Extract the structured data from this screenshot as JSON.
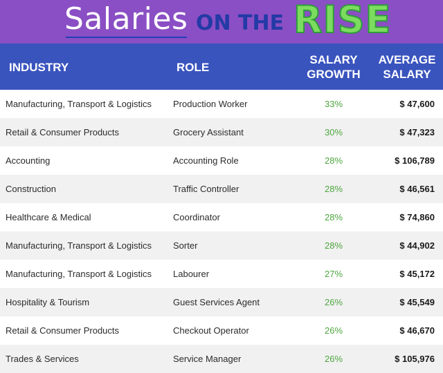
{
  "header": {
    "title_part1": "Salaries",
    "title_part2": "ON THE",
    "title_part3": "RISE"
  },
  "table": {
    "columns": {
      "industry": "INDUSTRY",
      "role": "ROLE",
      "growth_line1": "SALARY",
      "growth_line2": "GROWTH",
      "salary_line1": "AVERAGE",
      "salary_line2": "SALARY"
    },
    "rows": [
      {
        "industry": "Manufacturing, Transport & Logistics",
        "role": "Production Worker",
        "growth": "33%",
        "salary": "$ 47,600"
      },
      {
        "industry": "Retail & Consumer Products",
        "role": "Grocery Assistant",
        "growth": "30%",
        "salary": "$ 47,323"
      },
      {
        "industry": "Accounting",
        "role": "Accounting Role",
        "growth": "28%",
        "salary": "$ 106,789"
      },
      {
        "industry": "Construction",
        "role": "Traffic Controller",
        "growth": "28%",
        "salary": "$ 46,561"
      },
      {
        "industry": "Healthcare & Medical",
        "role": "Coordinator",
        "growth": "28%",
        "salary": "$ 74,860"
      },
      {
        "industry": "Manufacturing, Transport & Logistics",
        "role": "Sorter",
        "growth": "28%",
        "salary": "$ 44,902"
      },
      {
        "industry": "Manufacturing, Transport & Logistics",
        "role": "Labourer",
        "growth": "27%",
        "salary": "$ 45,172"
      },
      {
        "industry": "Hospitality & Tourism",
        "role": "Guest Services Agent",
        "growth": "26%",
        "salary": "$ 45,549"
      },
      {
        "industry": "Retail & Consumer Products",
        "role": "Checkout Operator",
        "growth": "26%",
        "salary": "$ 46,670"
      },
      {
        "industry": "Trades & Services",
        "role": "Service Manager",
        "growth": "26%",
        "salary": "$ 105,976"
      }
    ]
  },
  "colors": {
    "banner_bg": "#8a4fc4",
    "header_bg": "#3a54be",
    "growth_text": "#4ea640",
    "alt_row_bg": "#f1f1f1",
    "rise_green": "#7bdc5f"
  }
}
